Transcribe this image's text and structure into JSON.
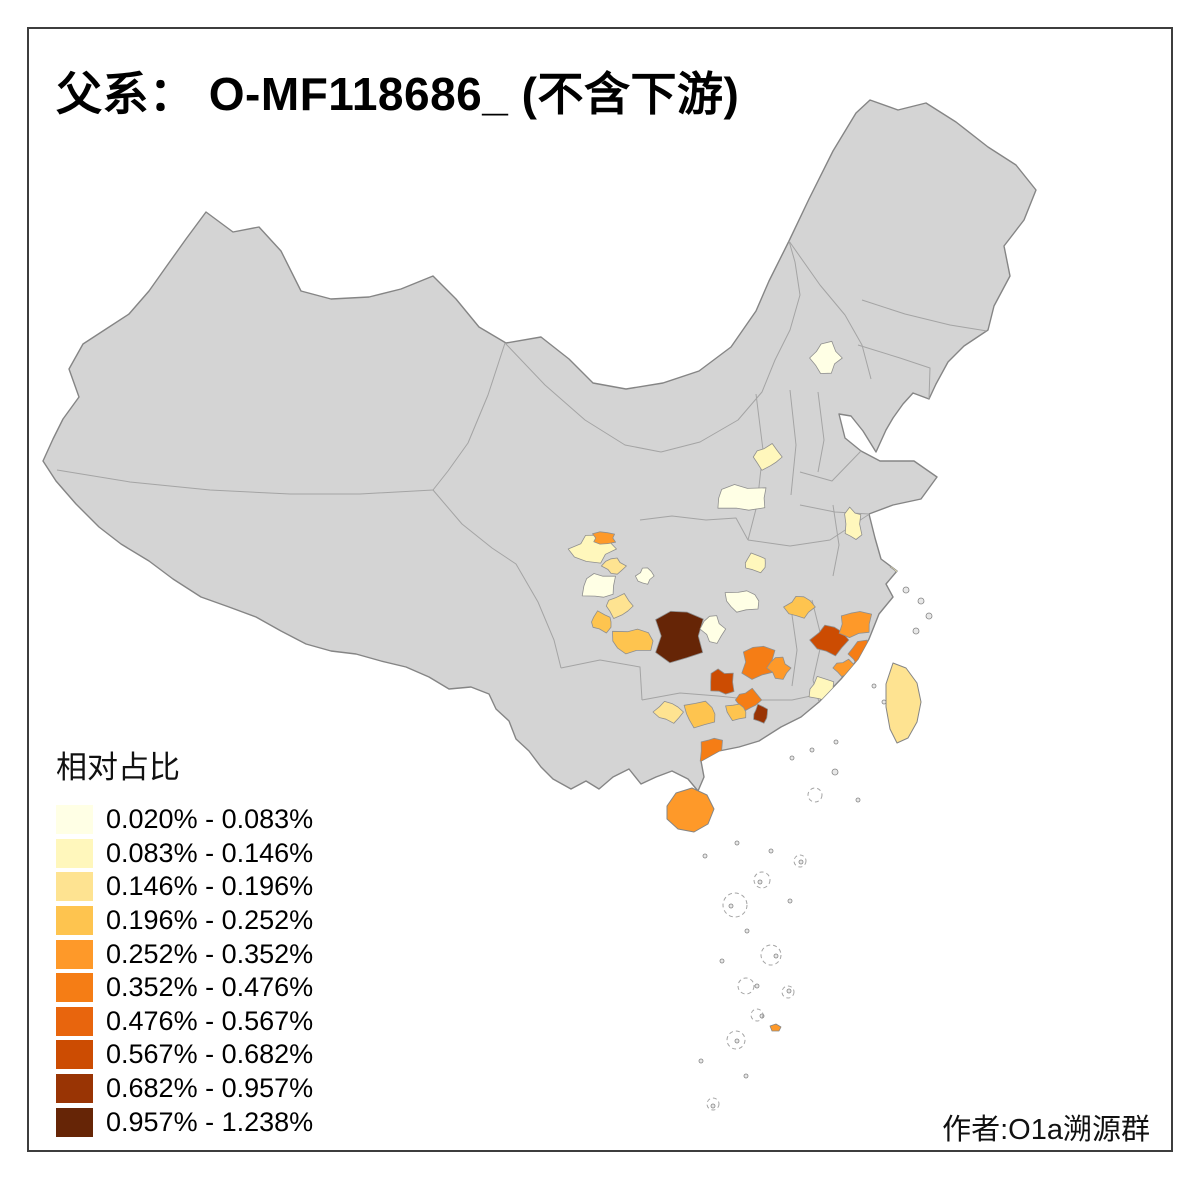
{
  "title": "父系： O-MF118686_ (不含下游)",
  "credit": "作者:O1a溯源群",
  "legend": {
    "title": "相对占比",
    "items": [
      {
        "label": "0.020% - 0.083%",
        "color": "#FFFFE5"
      },
      {
        "label": "0.083% - 0.146%",
        "color": "#FFF7BC"
      },
      {
        "label": "0.146% - 0.196%",
        "color": "#FEE391"
      },
      {
        "label": "0.196% - 0.252%",
        "color": "#FEC44F"
      },
      {
        "label": "0.252% - 0.352%",
        "color": "#FE9929"
      },
      {
        "label": "0.352% - 0.476%",
        "color": "#F57D15"
      },
      {
        "label": "0.476% - 0.567%",
        "color": "#E8650D"
      },
      {
        "label": "0.567% - 0.682%",
        "color": "#CC4C02"
      },
      {
        "label": "0.682% - 0.957%",
        "color": "#993404"
      },
      {
        "label": "0.957% - 1.238%",
        "color": "#662506"
      }
    ]
  },
  "map": {
    "base_fill": "#D4D4D4",
    "outline_color": "#858585",
    "border_color": "#A4A4A4",
    "region_border_color": "#8F8F8F",
    "island_fill": "#E8E8E8",
    "region_classes": [
      1,
      4,
      2,
      0,
      2,
      3,
      3,
      0,
      9,
      0,
      0,
      1,
      1,
      0,
      3,
      5,
      4,
      7,
      5,
      8,
      3,
      7,
      4,
      5,
      9,
      4,
      1,
      3,
      2,
      5,
      0,
      1,
      1
    ],
    "taiwan_class": 2,
    "hainan_class": 4,
    "scs_islet_class": 4
  },
  "chart_data": {
    "type": "choropleth",
    "title": "父系： O-MF118686_ (不含下游)",
    "legend_title": "相对占比",
    "unit": "%",
    "class_breaks_percent": [
      0.02,
      0.083,
      0.146,
      0.196,
      0.252,
      0.352,
      0.476,
      0.567,
      0.682,
      0.957,
      1.238
    ],
    "colors": [
      "#FFFFE5",
      "#FFF7BC",
      "#FEE391",
      "#FEC44F",
      "#FE9929",
      "#F57D15",
      "#E8650D",
      "#CC4C02",
      "#993404",
      "#662506"
    ],
    "base_region_fill": "#D4D4D4",
    "legend_position": "bottom-left"
  }
}
